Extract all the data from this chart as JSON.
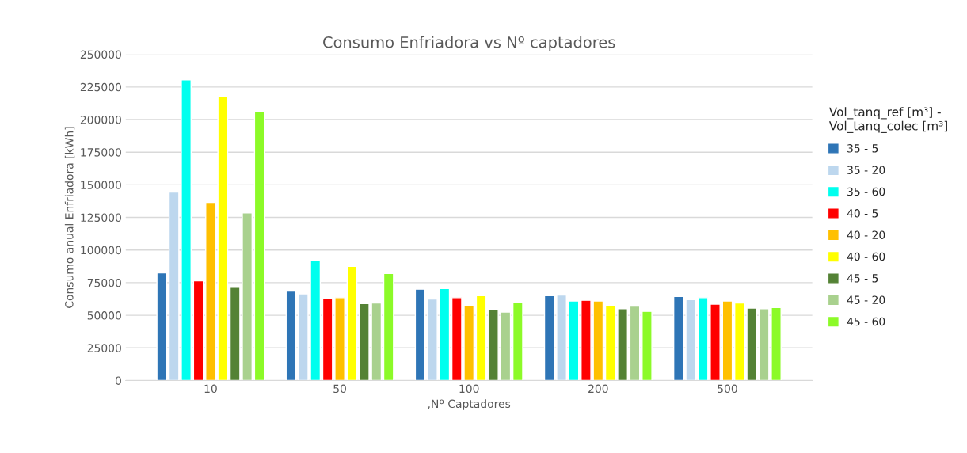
{
  "chart_data": {
    "type": "bar",
    "title": "Consumo Enfriadora vs Nº captadores",
    "xlabel": ",Nº Captadores",
    "ylabel": "Consumo anual Enfriadora [kWh]",
    "legend_title": "Vol_tanq_ref [m³] -\nVol_tanq_colec [m³]",
    "categories": [
      "10",
      "50",
      "100",
      "200",
      "500"
    ],
    "series": [
      {
        "name": "35 - 5",
        "color": "#2e75b6",
        "values": [
          82500,
          68500,
          70000,
          65000,
          64500
        ]
      },
      {
        "name": "35 - 20",
        "color": "#bdd7ee",
        "values": [
          144500,
          66500,
          62500,
          65500,
          62000
        ]
      },
      {
        "name": "35 - 60",
        "color": "#00ffee",
        "values": [
          230500,
          92000,
          70500,
          61000,
          63500
        ]
      },
      {
        "name": "40 - 5",
        "color": "#ff0000",
        "values": [
          76500,
          63000,
          63500,
          61500,
          58500
        ]
      },
      {
        "name": "40 - 20",
        "color": "#ffc000",
        "values": [
          136500,
          63500,
          57500,
          61000,
          61000
        ]
      },
      {
        "name": "40 - 60",
        "color": "#ffff00",
        "values": [
          218000,
          87500,
          65000,
          57500,
          59500
        ]
      },
      {
        "name": "45 - 5",
        "color": "#548235",
        "values": [
          71500,
          59000,
          54500,
          55000,
          55500
        ]
      },
      {
        "name": "45 - 20",
        "color": "#a9d18e",
        "values": [
          128500,
          59500,
          52500,
          57000,
          55000
        ]
      },
      {
        "name": "45 - 60",
        "color": "#8cfa28",
        "values": [
          206000,
          82000,
          60000,
          53000,
          56000
        ]
      }
    ],
    "ylim": [
      0,
      250000
    ],
    "yticks": [
      0,
      25000,
      50000,
      75000,
      100000,
      125000,
      150000,
      175000,
      200000,
      225000,
      250000
    ],
    "grid": "y",
    "legend": "right"
  }
}
